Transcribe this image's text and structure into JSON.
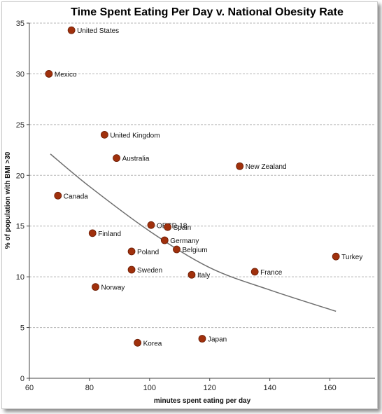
{
  "chart_data": {
    "type": "scatter",
    "title": "Time Spent Eating Per Day v. National Obesity Rate",
    "xlabel": "minutes spent eating per day",
    "ylabel": "% of population with BMI >30",
    "xlim": [
      60,
      175
    ],
    "ylim": [
      0,
      35
    ],
    "xticks": [
      60,
      80,
      100,
      120,
      140,
      160
    ],
    "yticks": [
      0,
      5,
      10,
      15,
      20,
      25,
      30,
      35
    ],
    "grid": "horizontal dashed",
    "series": [
      {
        "points": [
          {
            "label": "United States",
            "x": 74,
            "y": 34.3
          },
          {
            "label": "Mexico",
            "x": 66.5,
            "y": 30.0
          },
          {
            "label": "United Kingdom",
            "x": 85,
            "y": 24.0
          },
          {
            "label": "Australia",
            "x": 89,
            "y": 21.7
          },
          {
            "label": "New Zealand",
            "x": 130,
            "y": 20.9
          },
          {
            "label": "Canada",
            "x": 69.5,
            "y": 18.0
          },
          {
            "label": "OECD-18",
            "x": 100.5,
            "y": 15.1
          },
          {
            "label": "Spain",
            "x": 106,
            "y": 14.9
          },
          {
            "label": "Finland",
            "x": 81,
            "y": 14.3
          },
          {
            "label": "Germany",
            "x": 105,
            "y": 13.6
          },
          {
            "label": "Belgium",
            "x": 109,
            "y": 12.7
          },
          {
            "label": "Poland",
            "x": 94,
            "y": 12.5
          },
          {
            "label": "Turkey",
            "x": 162,
            "y": 12.0
          },
          {
            "label": "Sweden",
            "x": 94,
            "y": 10.7
          },
          {
            "label": "France",
            "x": 135,
            "y": 10.5
          },
          {
            "label": "Italy",
            "x": 114,
            "y": 10.2
          },
          {
            "label": "Norway",
            "x": 82,
            "y": 9.0
          },
          {
            "label": "Japan",
            "x": 117.5,
            "y": 3.9
          },
          {
            "label": "Korea",
            "x": 96,
            "y": 3.5
          }
        ],
        "color": "#a0300c"
      }
    ],
    "trendline": {
      "type": "fitted curve",
      "color": "#6e6e6e",
      "points": [
        {
          "x": 67,
          "y": 22.1
        },
        {
          "x": 80,
          "y": 18.9
        },
        {
          "x": 100,
          "y": 14.5
        },
        {
          "x": 120,
          "y": 10.9
        },
        {
          "x": 140,
          "y": 8.7
        },
        {
          "x": 162,
          "y": 6.6
        }
      ]
    }
  }
}
